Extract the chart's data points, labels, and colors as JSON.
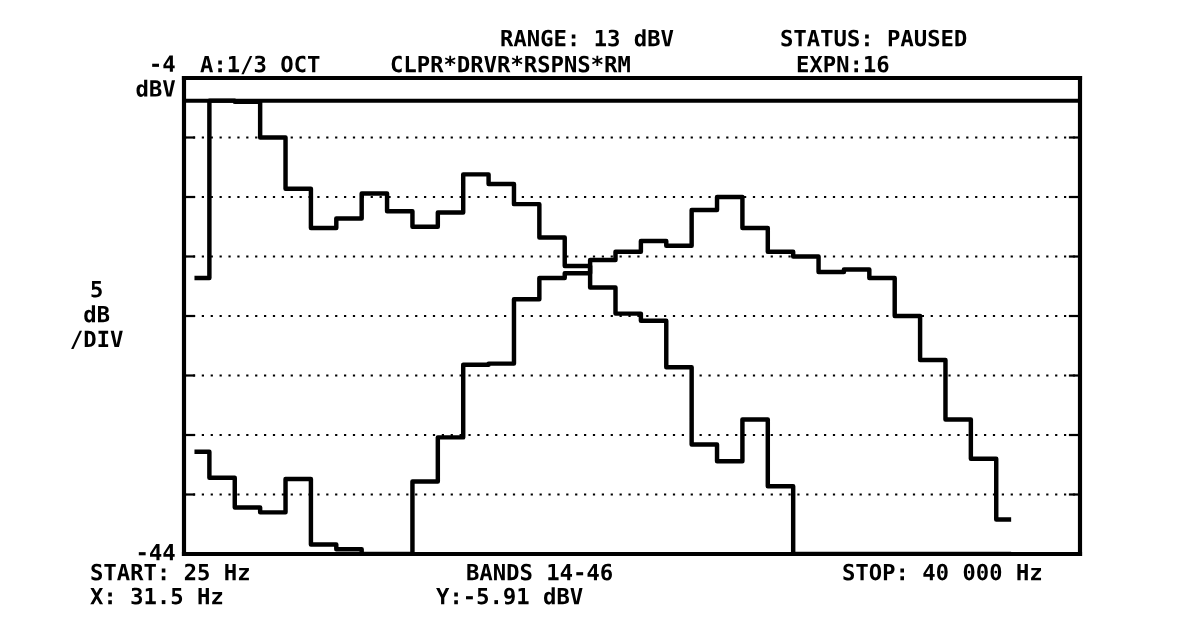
{
  "chart_data": {
    "type": "step",
    "categories": [
      null,
      null,
      null,
      null,
      null,
      null,
      null,
      null,
      null,
      null,
      null,
      null,
      null,
      null,
      null,
      null,
      null,
      null,
      null,
      null,
      null,
      null,
      null,
      null,
      null,
      null,
      null,
      null,
      null,
      null,
      null,
      null,
      null
    ],
    "series": [
      {
        "color": "#000000",
        "values": [
          -20.8,
          -5.9,
          -6.0,
          -9.0,
          -13.3,
          -16.6,
          -15.8,
          -13.7,
          -15.2,
          -16.5,
          -15.3,
          -12.1,
          -12.9,
          -14.6,
          -17.4,
          -19.8,
          -21.6,
          -23.8,
          -24.4,
          -28.3,
          -34.8,
          -36.2,
          -32.7,
          -38.3,
          -44,
          -44,
          -44,
          -44,
          -44,
          -44,
          -44,
          -44,
          -44
        ]
      },
      {
        "color": "#000000",
        "values": [
          -35.4,
          -37.6,
          -40.1,
          -40.5,
          -37.7,
          -43.2,
          -43.6,
          -44,
          -44,
          -37.9,
          -34.2,
          -28.1,
          -28.0,
          -22.6,
          -20.8,
          -20.4,
          -19.3,
          -18.6,
          -17.7,
          -18.1,
          -15.1,
          -14.0,
          -16.6,
          -18.6,
          -19.0,
          -20.3,
          -20.1,
          -20.8,
          -24.0,
          -27.7,
          -32.7,
          -36.0,
          -41.1
        ]
      }
    ],
    "ylim": [
      -44,
      -4
    ],
    "yticks": [
      {
        "value": -4,
        "label": "-4\ndBV"
      },
      {
        "value": -9,
        "label": null
      },
      {
        "value": -14,
        "label": null
      },
      {
        "value": -19,
        "label": null
      },
      {
        "value": -24,
        "label": null
      },
      {
        "value": -29,
        "label": null
      },
      {
        "value": -34,
        "label": null
      },
      {
        "value": -39,
        "label": null
      },
      {
        "value": -44,
        "label": "-44"
      }
    ],
    "ylabel": "5\ndB\n/DIV",
    "grid": "y",
    "line_style": "solid",
    "tick_labels": "y",
    "ref_lines": [
      {
        "axis": "y",
        "value": -5.91,
        "color": "#000000"
      }
    ],
    "annotations": [
      "RANGE: 13 dBV",
      "STATUS: PAUSED",
      "A:1/3 OCT",
      "CLPR*DRVR*RSPNS*RM",
      "EXPN:16",
      "START: 25 Hz",
      "BANDS 14-46",
      "STOP: 40 000 Hz",
      "X: 31.5 Hz",
      "Y:-5.91 dBV"
    ]
  }
}
